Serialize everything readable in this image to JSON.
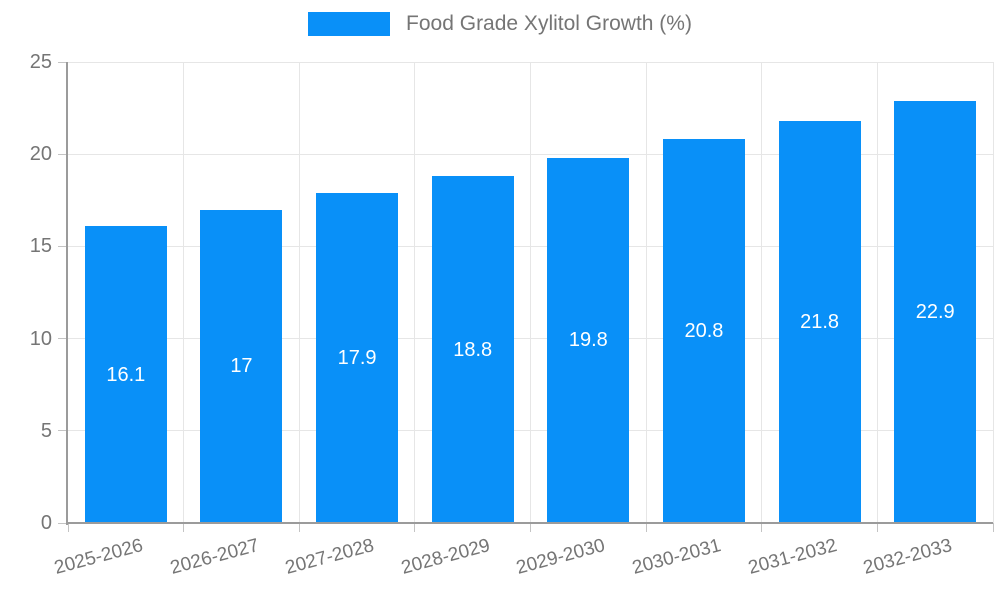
{
  "legend": {
    "label": "Food Grade Xylitol Growth (%)"
  },
  "colors": {
    "bar": "#0990f8",
    "grid": "#e6e6e6",
    "axis": "#9b9b9b",
    "tick": "#c4c4c4",
    "axis_text": "#757575",
    "value_text": "#ffffff",
    "background": "#ffffff"
  },
  "chart_data": {
    "type": "bar",
    "title": "Food Grade Xylitol Growth (%)",
    "categories": [
      "2025-2026",
      "2026-2027",
      "2027-2028",
      "2028-2029",
      "2029-2030",
      "2030-2031",
      "2031-2032",
      "2032-2033"
    ],
    "values": [
      16.1,
      17,
      17.9,
      18.8,
      19.8,
      20.8,
      21.8,
      22.9
    ],
    "value_labels": [
      "16.1",
      "17",
      "17.9",
      "18.8",
      "19.8",
      "20.8",
      "21.8",
      "22.9"
    ],
    "xlabel": "",
    "ylabel": "",
    "ylim": [
      0,
      25
    ],
    "yticks": [
      0,
      5,
      10,
      15,
      20,
      25
    ],
    "grid": true,
    "legend_position": "top-center",
    "x_tick_rotation_deg": -15,
    "value_label_position": "inside-middle"
  }
}
